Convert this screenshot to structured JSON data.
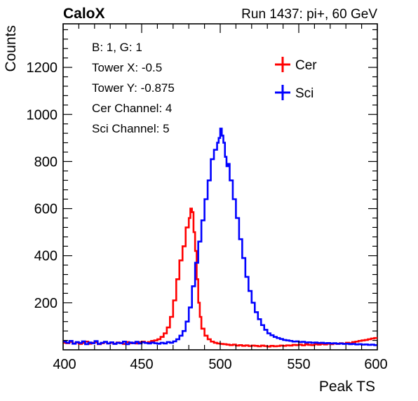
{
  "header": {
    "left": "CaloX",
    "right": "Run 1437: pi+, 60 GeV"
  },
  "info_lines": [
    "B: 1, G: 1",
    "Tower X: -0.5",
    "Tower Y: -0.875",
    "Cer Channel: 4",
    "Sci Channel: 5"
  ],
  "colors": {
    "cer": "#ff0000",
    "sci": "#0000ff"
  },
  "chart_data": {
    "type": "line",
    "style": "histogram-steps",
    "xlabel": "Peak TS",
    "ylabel": "Counts",
    "xlim": [
      400,
      600
    ],
    "ylim": [
      0,
      1385
    ],
    "xticks": [
      400,
      450,
      500,
      550,
      600
    ],
    "yticks": [
      200,
      400,
      600,
      800,
      1000,
      1200
    ],
    "legend": {
      "placement": "top-right",
      "entries": [
        "Cer",
        "Sci"
      ]
    },
    "series": [
      {
        "name": "Cer",
        "x": [
          400,
          402,
          404,
          406,
          408,
          410,
          412,
          414,
          416,
          418,
          420,
          422,
          424,
          426,
          428,
          430,
          432,
          434,
          436,
          438,
          440,
          442,
          444,
          446,
          448,
          450,
          452,
          454,
          456,
          458,
          460,
          462,
          464,
          466,
          468,
          470,
          472,
          474,
          476,
          478,
          480,
          481,
          482,
          483,
          484,
          485,
          486,
          487,
          488,
          490,
          492,
          494,
          496,
          498,
          500,
          502,
          504,
          506,
          508,
          510,
          512,
          514,
          516,
          518,
          520,
          522,
          524,
          526,
          528,
          530,
          532,
          534,
          536,
          538,
          540,
          542,
          544,
          546,
          548,
          550,
          552,
          554,
          556,
          558,
          560,
          562,
          564,
          566,
          568,
          570,
          572,
          574,
          576,
          578,
          580,
          582,
          584,
          586,
          588,
          590,
          592,
          594,
          596,
          598
        ],
        "y": [
          30,
          28,
          34,
          27,
          31,
          25,
          29,
          35,
          26,
          30,
          32,
          24,
          28,
          33,
          27,
          30,
          26,
          31,
          29,
          25,
          33,
          28,
          30,
          27,
          32,
          35,
          30,
          33,
          38,
          40,
          45,
          55,
          70,
          95,
          140,
          210,
          300,
          380,
          440,
          520,
          560,
          600,
          585,
          500,
          420,
          300,
          200,
          140,
          90,
          60,
          45,
          35,
          30,
          27,
          25,
          24,
          22,
          20,
          22,
          18,
          20,
          17,
          19,
          16,
          18,
          17,
          15,
          18,
          16,
          14,
          17,
          15,
          16,
          18,
          17,
          19,
          18,
          21,
          20,
          22,
          19,
          23,
          21,
          20,
          24,
          22,
          25,
          23,
          26,
          24,
          27,
          25,
          28,
          26,
          30,
          28,
          33,
          35,
          38,
          40,
          42,
          45,
          48,
          50
        ]
      },
      {
        "name": "Sci",
        "x": [
          400,
          402,
          404,
          406,
          408,
          410,
          412,
          414,
          416,
          418,
          420,
          422,
          424,
          426,
          428,
          430,
          432,
          434,
          436,
          438,
          440,
          442,
          444,
          446,
          448,
          450,
          452,
          454,
          456,
          458,
          460,
          462,
          464,
          466,
          468,
          470,
          472,
          474,
          476,
          478,
          480,
          482,
          484,
          486,
          488,
          490,
          492,
          494,
          496,
          498,
          499,
          500,
          501,
          502,
          503,
          504,
          505,
          506,
          508,
          510,
          512,
          514,
          516,
          518,
          520,
          522,
          524,
          526,
          528,
          530,
          532,
          534,
          536,
          538,
          540,
          542,
          544,
          546,
          548,
          550,
          552,
          554,
          556,
          558,
          560,
          562,
          564,
          566,
          568,
          570,
          572,
          574,
          576,
          578,
          580,
          582,
          584,
          586,
          588,
          590,
          592,
          594,
          596,
          598
        ],
        "y": [
          35,
          30,
          38,
          26,
          33,
          29,
          36,
          24,
          31,
          28,
          37,
          25,
          30,
          34,
          27,
          32,
          25,
          30,
          28,
          35,
          24,
          31,
          28,
          34,
          27,
          32,
          29,
          27,
          31,
          28,
          26,
          30,
          27,
          33,
          30,
          36,
          45,
          60,
          80,
          120,
          180,
          270,
          370,
          460,
          550,
          640,
          720,
          810,
          850,
          880,
          900,
          940,
          910,
          880,
          820,
          780,
          790,
          720,
          640,
          560,
          470,
          390,
          310,
          250,
          200,
          160,
          130,
          105,
          85,
          70,
          62,
          55,
          50,
          46,
          42,
          40,
          38,
          35,
          36,
          33,
          34,
          31,
          32,
          30,
          31,
          29,
          30,
          28,
          29,
          27,
          28,
          26,
          27,
          25,
          26,
          24,
          25,
          23,
          24,
          22,
          23,
          21,
          22,
          20
        ]
      }
    ]
  }
}
